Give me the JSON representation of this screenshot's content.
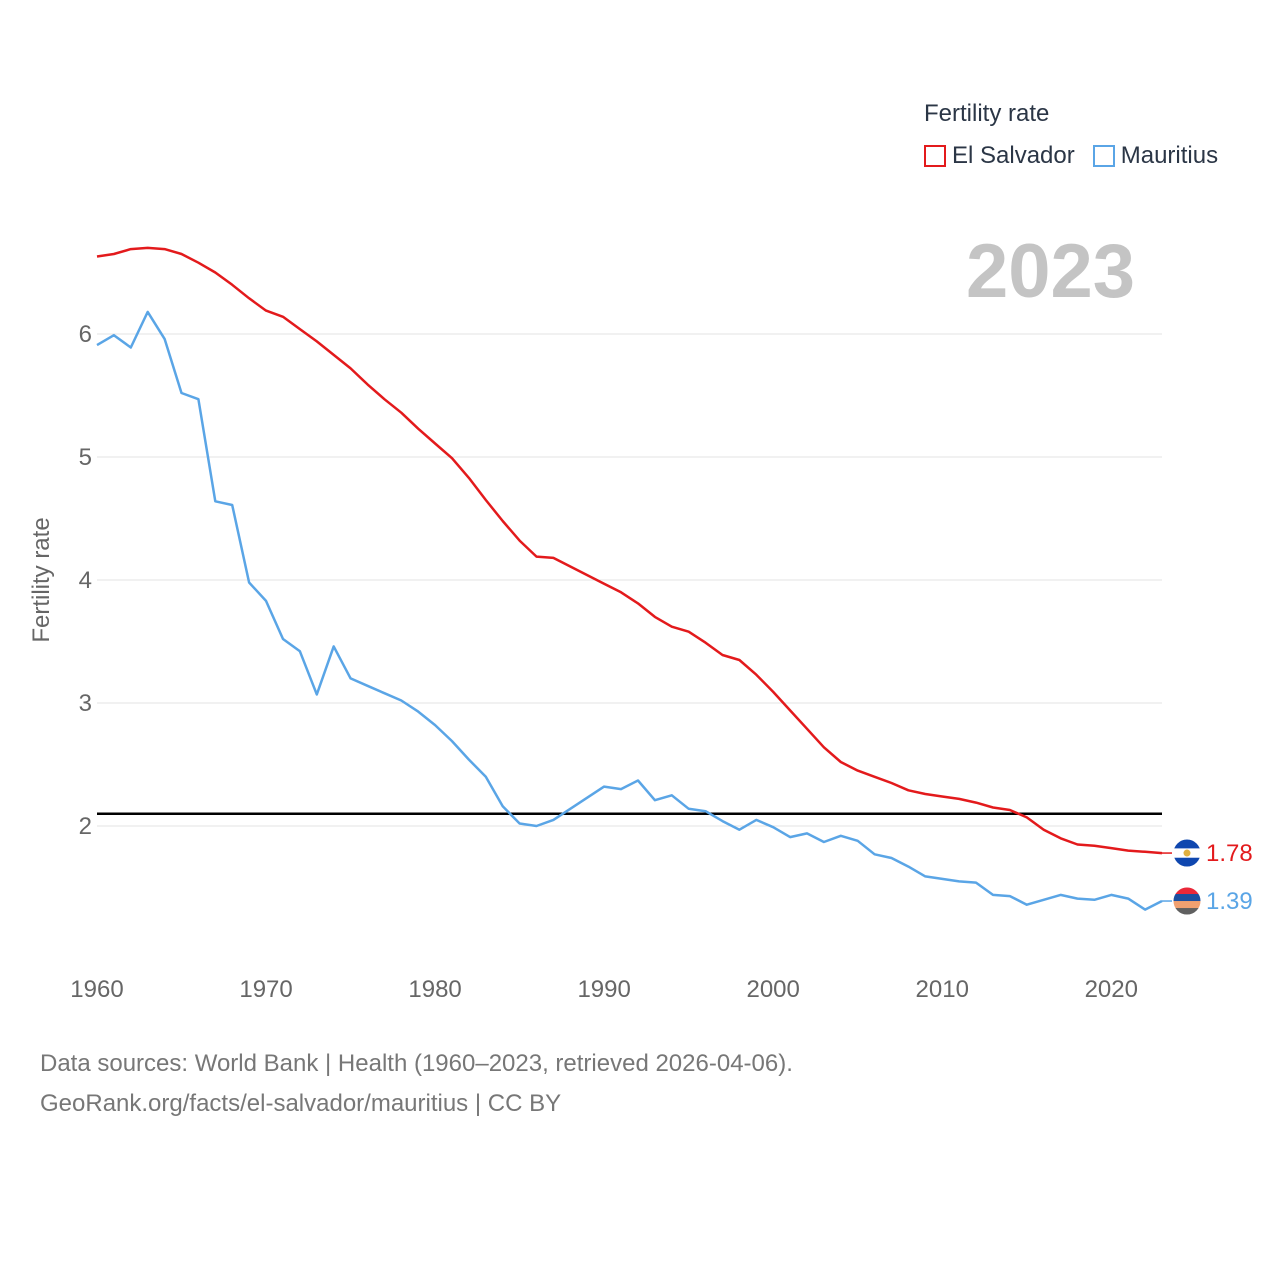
{
  "legend": {
    "title": "Fertility rate",
    "items": [
      {
        "name": "El Salvador",
        "color": "#e31a1c"
      },
      {
        "name": "Mauritius",
        "color": "#5aa5e6"
      }
    ]
  },
  "year_label": "2023",
  "footer": {
    "line1": "Data sources: World Bank | Health (1960–2023, retrieved 2026-04-06).",
    "line2": "GeoRank.org/facts/el-salvador/mauritius | CC BY"
  },
  "chart_data": {
    "type": "line",
    "ylabel": "Fertility rate",
    "xlim": [
      1960,
      2023
    ],
    "ylim": [
      1.0,
      6.85
    ],
    "xticks": [
      1960,
      1970,
      1980,
      1990,
      2000,
      2010,
      2020
    ],
    "yticks": [
      2,
      3,
      4,
      5,
      6
    ],
    "reference_line": {
      "value": 2.1,
      "color": "#000000"
    },
    "x": [
      1960,
      1961,
      1962,
      1963,
      1964,
      1965,
      1966,
      1967,
      1968,
      1969,
      1970,
      1971,
      1972,
      1973,
      1974,
      1975,
      1976,
      1977,
      1978,
      1979,
      1980,
      1981,
      1982,
      1983,
      1984,
      1985,
      1986,
      1987,
      1988,
      1989,
      1990,
      1991,
      1992,
      1993,
      1994,
      1995,
      1996,
      1997,
      1998,
      1999,
      2000,
      2001,
      2002,
      2003,
      2004,
      2005,
      2006,
      2007,
      2008,
      2009,
      2010,
      2011,
      2012,
      2013,
      2014,
      2015,
      2016,
      2017,
      2018,
      2019,
      2020,
      2021,
      2022,
      2023
    ],
    "series": [
      {
        "name": "El Salvador",
        "color": "#e31a1c",
        "end_label": "1.78",
        "values": [
          6.63,
          6.65,
          6.69,
          6.7,
          6.69,
          6.65,
          6.58,
          6.5,
          6.4,
          6.29,
          6.19,
          6.14,
          6.04,
          5.94,
          5.83,
          5.72,
          5.59,
          5.47,
          5.36,
          5.23,
          5.11,
          4.99,
          4.83,
          4.65,
          4.48,
          4.32,
          4.19,
          4.18,
          4.11,
          4.04,
          3.97,
          3.9,
          3.81,
          3.7,
          3.62,
          3.58,
          3.49,
          3.39,
          3.35,
          3.23,
          3.09,
          2.94,
          2.79,
          2.64,
          2.52,
          2.45,
          2.4,
          2.35,
          2.29,
          2.26,
          2.24,
          2.22,
          2.19,
          2.15,
          2.13,
          2.07,
          1.97,
          1.9,
          1.85,
          1.84,
          1.82,
          1.8,
          1.79,
          1.78
        ]
      },
      {
        "name": "Mauritius",
        "color": "#5aa5e6",
        "end_label": "1.39",
        "values": [
          5.91,
          5.99,
          5.89,
          6.18,
          5.96,
          5.52,
          5.47,
          4.64,
          4.61,
          3.98,
          3.83,
          3.52,
          3.42,
          3.07,
          3.46,
          3.2,
          3.14,
          3.08,
          3.02,
          2.93,
          2.82,
          2.69,
          2.54,
          2.4,
          2.16,
          2.02,
          2.0,
          2.05,
          2.14,
          2.23,
          2.32,
          2.3,
          2.37,
          2.21,
          2.25,
          2.14,
          2.12,
          2.04,
          1.97,
          2.05,
          1.99,
          1.91,
          1.94,
          1.87,
          1.92,
          1.88,
          1.77,
          1.74,
          1.67,
          1.59,
          1.57,
          1.55,
          1.54,
          1.44,
          1.43,
          1.36,
          1.4,
          1.44,
          1.41,
          1.4,
          1.44,
          1.41,
          1.32,
          1.39
        ]
      }
    ]
  }
}
